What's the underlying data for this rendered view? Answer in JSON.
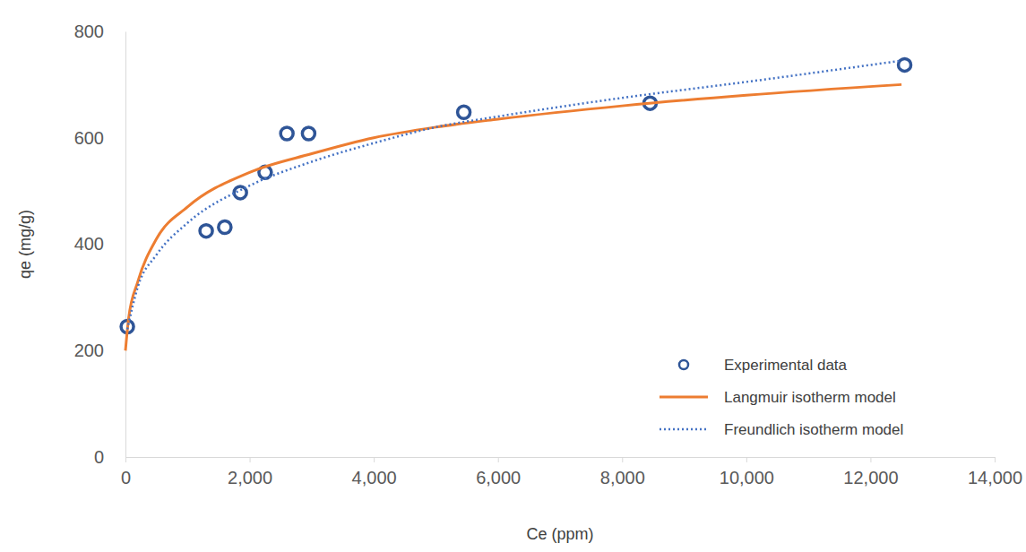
{
  "chart_data": {
    "type": "scatter",
    "x_label": "Ce (ppm)",
    "y_label": "qe (mg/g)",
    "xlim": [
      0,
      14000
    ],
    "xticks": [
      0,
      {
        "value": 2000,
        "label": "2,000"
      },
      {
        "value": 4000,
        "label": "4,000"
      },
      {
        "value": 6000,
        "label": "6,000"
      },
      {
        "value": 8000,
        "label": "8,000"
      },
      {
        "value": 10000,
        "label": "10,000"
      },
      {
        "value": 12000,
        "label": "12,000"
      },
      {
        "value": 14000,
        "label": "14,000"
      }
    ],
    "ylim": [
      0,
      800
    ],
    "yticks": [
      0,
      200,
      400,
      600,
      800
    ],
    "grid": false,
    "legend": "lower right",
    "series": [
      {
        "name": "Experimental data",
        "type": "scatter",
        "marker": "circle",
        "color": "#2f5597",
        "x": [
          30,
          1300,
          1600,
          1850,
          2250,
          2600,
          2950,
          5450,
          8450,
          12550
        ],
        "values": [
          245,
          425,
          432,
          497,
          535,
          608,
          608,
          648,
          665,
          737
        ]
      },
      {
        "name": "Langmuir isotherm model",
        "type": "line",
        "line_style": "solid",
        "color": "#ed7d31",
        "x": [
          0,
          50,
          200,
          500,
          1000,
          2000,
          3000,
          4000,
          5000,
          6000,
          8000,
          10000,
          12500
        ],
        "values": [
          200,
          260,
          330,
          410,
          470,
          535,
          570,
          600,
          620,
          635,
          660,
          680,
          700
        ]
      },
      {
        "name": "Freundlich isotherm model",
        "type": "line",
        "line_style": "dotted",
        "color": "#4472c4",
        "x": [
          30,
          200,
          500,
          1000,
          2000,
          3000,
          4000,
          5000,
          6000,
          8000,
          10000,
          12500
        ],
        "values": [
          240,
          320,
          380,
          440,
          510,
          555,
          590,
          620,
          640,
          675,
          705,
          745
        ]
      }
    ]
  }
}
